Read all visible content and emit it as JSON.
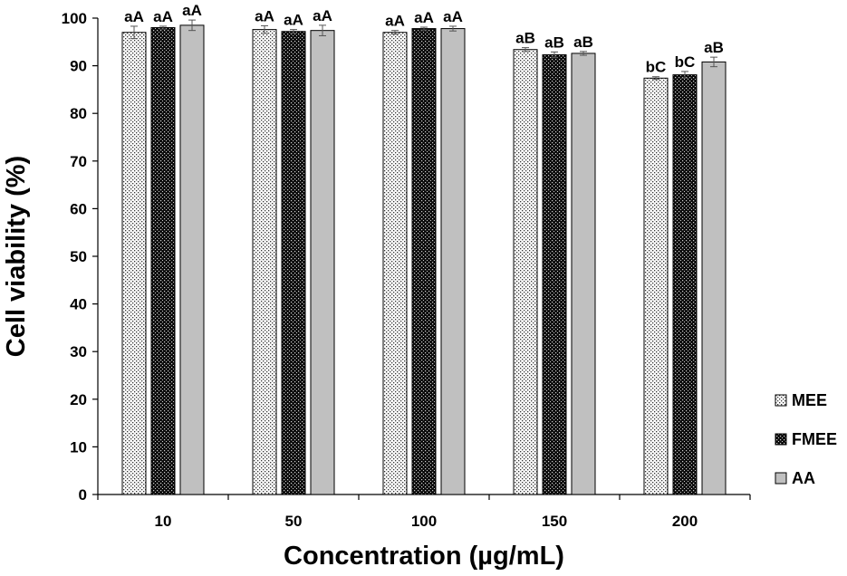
{
  "chart_data": {
    "type": "bar",
    "title": "",
    "xlabel": "Concentration (µg/mL)",
    "ylabel": "Cell viability (%)",
    "ylim": [
      0,
      100
    ],
    "yticks": [
      0,
      10,
      20,
      30,
      40,
      50,
      60,
      70,
      80,
      90,
      100
    ],
    "categories": [
      "10",
      "50",
      "100",
      "150",
      "200"
    ],
    "legend_position": "right",
    "series": [
      {
        "name": "MEE",
        "pattern": "dots-light",
        "color": "#ffffff",
        "values": [
          97.0,
          97.6,
          97.0,
          93.4,
          87.4
        ],
        "errors": [
          1.3,
          0.8,
          0.4,
          0.4,
          0.3
        ],
        "labels": [
          "aA",
          "aA",
          "aA",
          "aB",
          "bC"
        ]
      },
      {
        "name": "FMEE",
        "pattern": "dots-dark",
        "color": "#111111",
        "values": [
          98.0,
          97.2,
          97.8,
          92.3,
          88.1
        ],
        "errors": [
          0.3,
          0.4,
          0.3,
          0.6,
          0.7
        ],
        "labels": [
          "aA",
          "aA",
          "aA",
          "aB",
          "bC"
        ]
      },
      {
        "name": "AA",
        "pattern": "solid",
        "color": "#c0c0c0",
        "values": [
          98.5,
          97.4,
          97.8,
          92.6,
          90.8
        ],
        "errors": [
          1.1,
          1.1,
          0.5,
          0.4,
          1.0
        ],
        "labels": [
          "aA",
          "aA",
          "aA",
          "aB",
          "aB"
        ]
      }
    ]
  }
}
